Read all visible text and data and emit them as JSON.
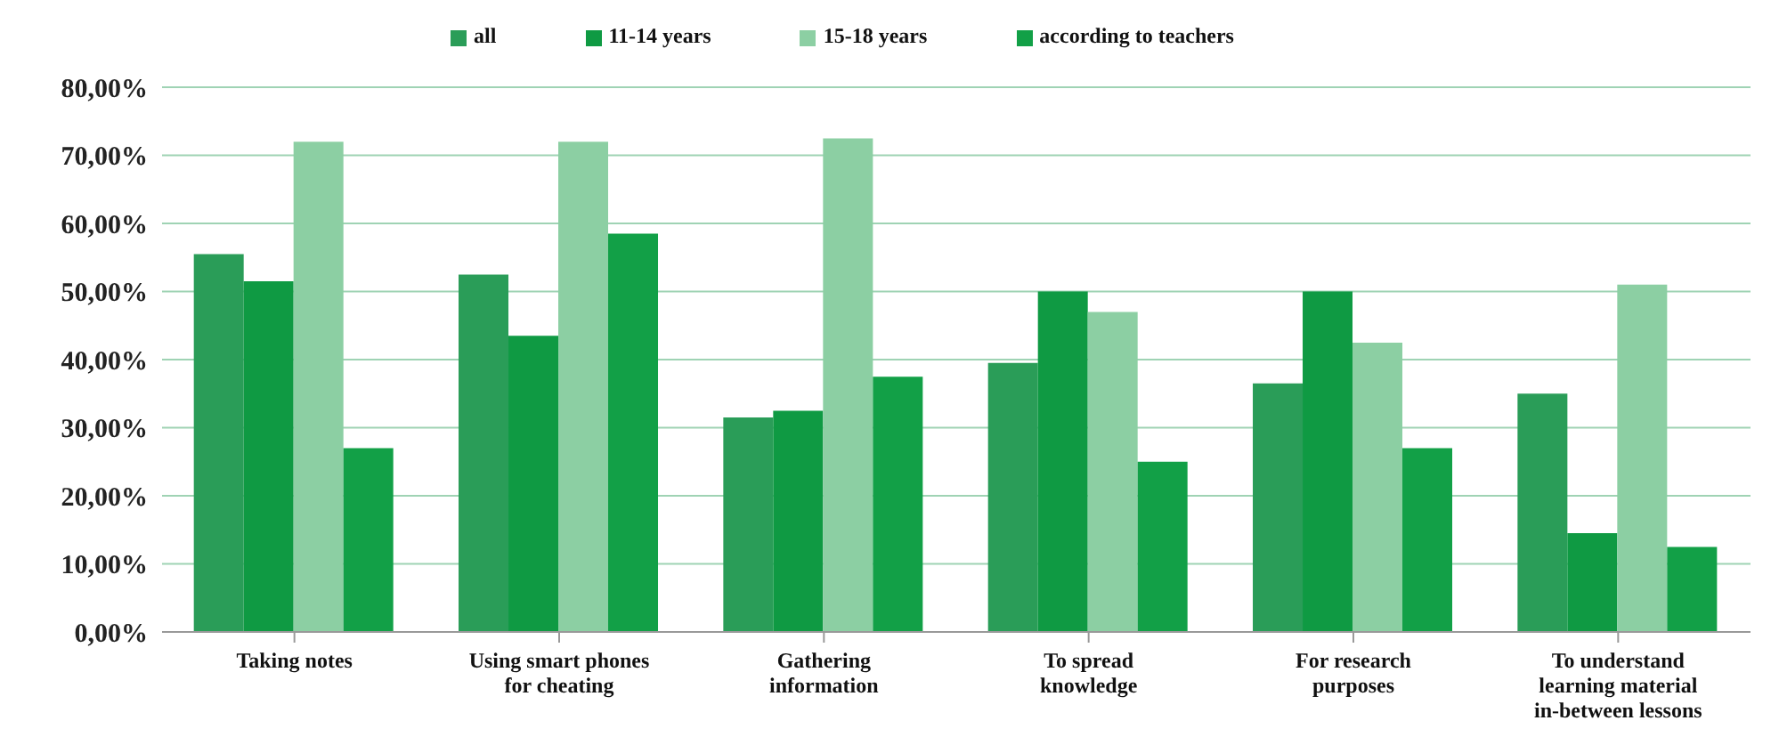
{
  "chart_data": {
    "type": "bar",
    "categories": [
      "Taking notes",
      "Using smart phones\nfor cheating",
      "Gathering\ninformation",
      "To spread\nknowledge",
      "For research\npurposes",
      "To understand\nlearning material\nin-between lessons"
    ],
    "series": [
      {
        "name": "all",
        "color": "#2a9d58",
        "values": [
          55.5,
          52.5,
          31.5,
          39.5,
          36.5,
          35
        ]
      },
      {
        "name": "11-14 years",
        "color": "#0f9a43",
        "values": [
          51.5,
          43.5,
          32.5,
          50,
          50,
          14.5
        ]
      },
      {
        "name": "15-18 years",
        "color": "#8ccfa3",
        "values": [
          72,
          72,
          72.5,
          47,
          42.5,
          51
        ]
      },
      {
        "name": "according to teachers",
        "color": "#12a047",
        "values": [
          27,
          58.5,
          37.5,
          25,
          27,
          12.5
        ]
      }
    ],
    "ylim": [
      0,
      80
    ],
    "yticks": [
      {
        "value": 0,
        "label": "0,00%"
      },
      {
        "value": 10,
        "label": "10,00%"
      },
      {
        "value": 20,
        "label": "20,00%"
      },
      {
        "value": 30,
        "label": "30,00%"
      },
      {
        "value": 40,
        "label": "40,00%"
      },
      {
        "value": 50,
        "label": "50,00%"
      },
      {
        "value": 60,
        "label": "60,00%"
      },
      {
        "value": 70,
        "label": "70,00%"
      },
      {
        "value": 80,
        "label": "80,00%"
      }
    ],
    "grid": "y",
    "legend": "top"
  }
}
